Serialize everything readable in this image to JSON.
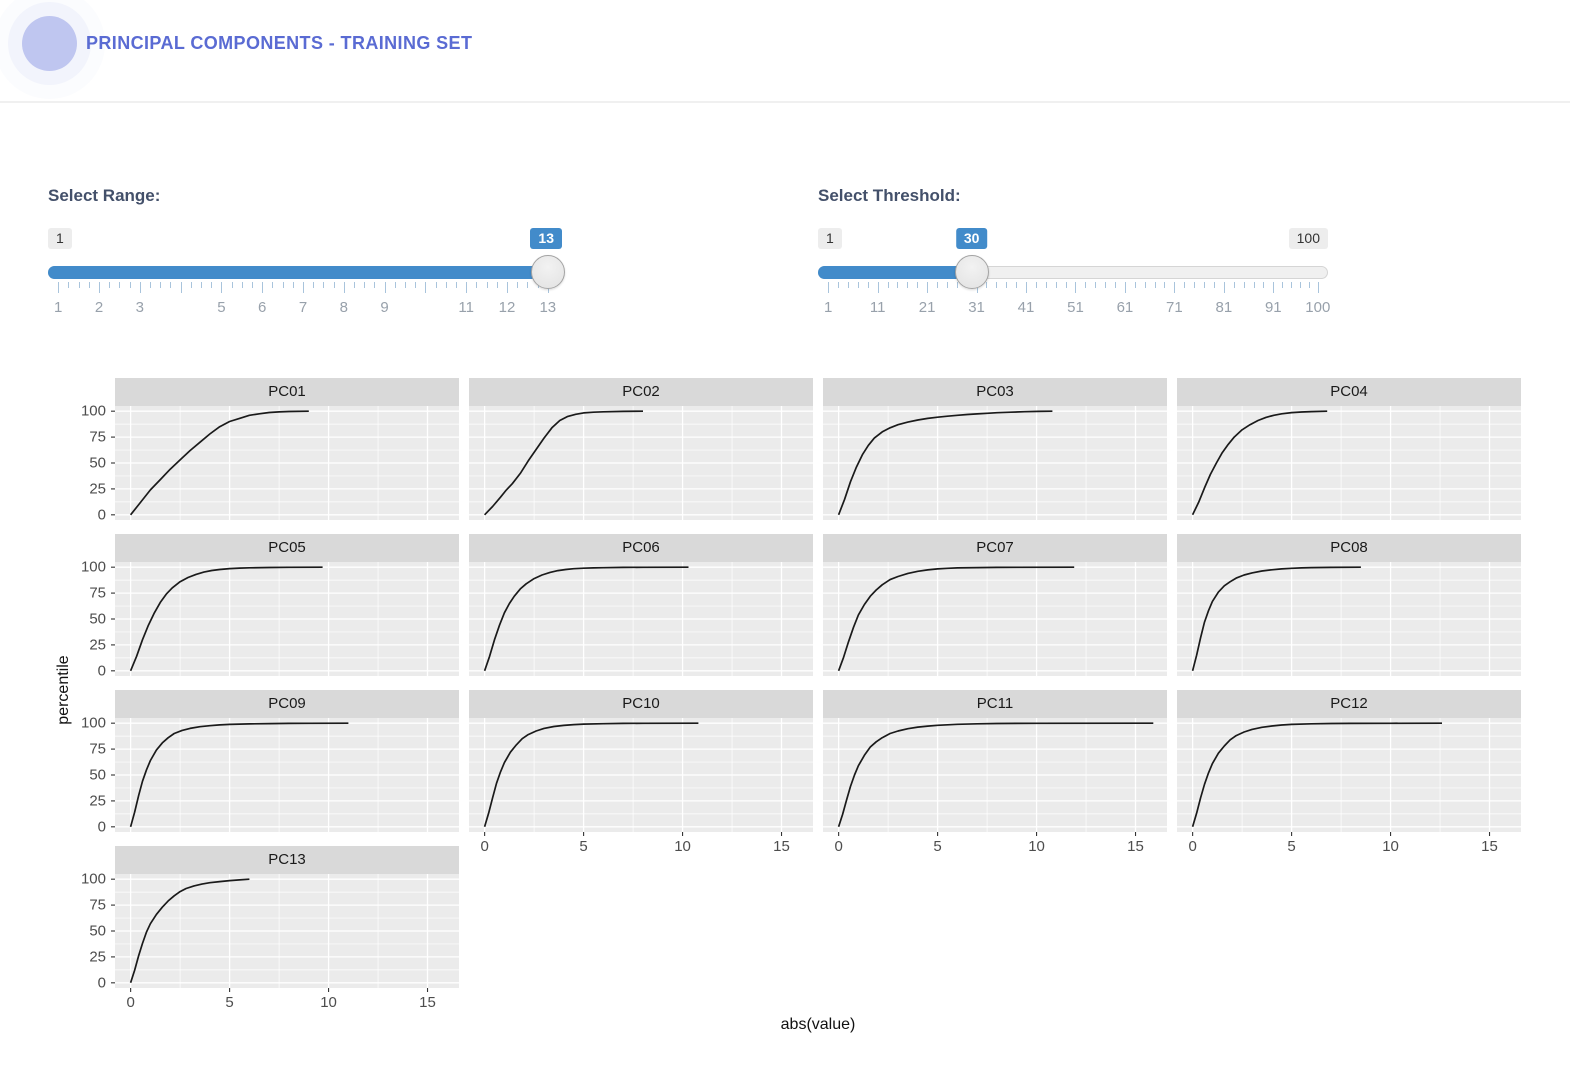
{
  "header": {
    "title": "PRINCIPAL COMPONENTS - TRAINING SET"
  },
  "accent_colors": {
    "slider_blue": "#428bca",
    "brand_purple": "#5a6bd3"
  },
  "range_slider": {
    "label": "Select Range:",
    "min": 1,
    "max": 13,
    "value": 13,
    "badges": {
      "min": "1",
      "value": "13"
    },
    "tick_values": [
      1,
      2,
      3,
      4,
      5,
      6,
      7,
      8,
      9,
      10,
      11,
      12,
      13
    ],
    "tick_labels": [
      "1",
      "2",
      "3",
      null,
      "5",
      "6",
      "7",
      "8",
      "9",
      null,
      "11",
      "12",
      "13"
    ],
    "minor_per_gap": 3
  },
  "threshold_slider": {
    "label": "Select Threshold:",
    "min": 1,
    "max": 100,
    "value": 30,
    "badges": {
      "min": "1",
      "max": "100",
      "value": "30"
    },
    "tick_values": [
      1,
      11,
      21,
      31,
      41,
      51,
      61,
      71,
      81,
      91,
      100
    ],
    "tick_labels": [
      "1",
      "11",
      "21",
      "31",
      "41",
      "51",
      "61",
      "71",
      "81",
      "91",
      "100"
    ],
    "minor_per_gap": 4
  },
  "chart_data": {
    "type": "line",
    "title": "",
    "xlabel": "abs(value)",
    "ylabel": "percentile",
    "ncol": 4,
    "xlim": [
      -0.79,
      16.59
    ],
    "ylim": [
      -5,
      105
    ],
    "x_ticks": [
      0,
      5,
      10,
      15
    ],
    "y_ticks": [
      0,
      25,
      50,
      75,
      100
    ],
    "x_minor": [
      2.5,
      7.5,
      12.5
    ],
    "y_minor": [
      12.5,
      37.5,
      62.5,
      87.5
    ],
    "grid": "on",
    "panel_bg": "#ebebeb",
    "strip_bg": "#d9d9d9",
    "line_color": "#1a1a1a",
    "facets": [
      {
        "title": "PC01",
        "points": [
          [
            0,
            0
          ],
          [
            0.5,
            12
          ],
          [
            1,
            24
          ],
          [
            1.5,
            34
          ],
          [
            2,
            44
          ],
          [
            2.5,
            53
          ],
          [
            3,
            62
          ],
          [
            3.5,
            70
          ],
          [
            4,
            78
          ],
          [
            4.5,
            85
          ],
          [
            5,
            90
          ],
          [
            5.5,
            93
          ],
          [
            6,
            96
          ],
          [
            6.5,
            97.5
          ],
          [
            7,
            98.7
          ],
          [
            7.5,
            99.3
          ],
          [
            8,
            99.7
          ],
          [
            9,
            100
          ]
        ]
      },
      {
        "title": "PC02",
        "points": [
          [
            0,
            0
          ],
          [
            0.4,
            8
          ],
          [
            0.8,
            17
          ],
          [
            1.1,
            24
          ],
          [
            1.4,
            30
          ],
          [
            1.8,
            40
          ],
          [
            2.2,
            52
          ],
          [
            2.6,
            63
          ],
          [
            3,
            74
          ],
          [
            3.4,
            84
          ],
          [
            3.8,
            91
          ],
          [
            4.2,
            95
          ],
          [
            4.6,
            97
          ],
          [
            5,
            98.3
          ],
          [
            5.5,
            99
          ],
          [
            6,
            99.4
          ],
          [
            7,
            99.8
          ],
          [
            8,
            100
          ]
        ]
      },
      {
        "title": "PC03",
        "points": [
          [
            0,
            0
          ],
          [
            0.3,
            15
          ],
          [
            0.6,
            32
          ],
          [
            0.9,
            46
          ],
          [
            1.2,
            58
          ],
          [
            1.5,
            67
          ],
          [
            1.8,
            74
          ],
          [
            2.2,
            80
          ],
          [
            2.6,
            84
          ],
          [
            3,
            87
          ],
          [
            3.5,
            89.5
          ],
          [
            4,
            91.5
          ],
          [
            4.5,
            93
          ],
          [
            5,
            94.2
          ],
          [
            5.5,
            95.2
          ],
          [
            6,
            96
          ],
          [
            6.5,
            96.8
          ],
          [
            7,
            97.4
          ],
          [
            7.5,
            98
          ],
          [
            8,
            98.5
          ],
          [
            8.7,
            99
          ],
          [
            9.4,
            99.5
          ],
          [
            10.1,
            99.8
          ],
          [
            10.8,
            100
          ]
        ]
      },
      {
        "title": "PC04",
        "points": [
          [
            0,
            0
          ],
          [
            0.3,
            12
          ],
          [
            0.6,
            26
          ],
          [
            0.9,
            39
          ],
          [
            1.2,
            50
          ],
          [
            1.5,
            60
          ],
          [
            1.8,
            68
          ],
          [
            2.1,
            75
          ],
          [
            2.5,
            82
          ],
          [
            2.9,
            87
          ],
          [
            3.3,
            91
          ],
          [
            3.7,
            94
          ],
          [
            4.1,
            96
          ],
          [
            4.5,
            97.5
          ],
          [
            5,
            98.6
          ],
          [
            5.5,
            99.2
          ],
          [
            6,
            99.6
          ],
          [
            6.8,
            100
          ]
        ]
      },
      {
        "title": "PC05",
        "points": [
          [
            0,
            0
          ],
          [
            0.3,
            14
          ],
          [
            0.6,
            30
          ],
          [
            0.9,
            44
          ],
          [
            1.2,
            56
          ],
          [
            1.5,
            66
          ],
          [
            1.8,
            74
          ],
          [
            2.1,
            80
          ],
          [
            2.5,
            86
          ],
          [
            2.9,
            90
          ],
          [
            3.3,
            93
          ],
          [
            3.7,
            95.3
          ],
          [
            4.1,
            96.8
          ],
          [
            4.5,
            97.8
          ],
          [
            5,
            98.6
          ],
          [
            5.5,
            99.1
          ],
          [
            6,
            99.4
          ],
          [
            7,
            99.7
          ],
          [
            8,
            99.9
          ],
          [
            9.7,
            100
          ]
        ]
      },
      {
        "title": "PC06",
        "points": [
          [
            0,
            0
          ],
          [
            0.25,
            14
          ],
          [
            0.5,
            30
          ],
          [
            0.75,
            44
          ],
          [
            1,
            56
          ],
          [
            1.25,
            65
          ],
          [
            1.5,
            72
          ],
          [
            1.8,
            79
          ],
          [
            2.1,
            84
          ],
          [
            2.5,
            89
          ],
          [
            2.9,
            92.5
          ],
          [
            3.3,
            95
          ],
          [
            3.7,
            96.7
          ],
          [
            4.1,
            97.8
          ],
          [
            4.5,
            98.5
          ],
          [
            5,
            99
          ],
          [
            5.5,
            99.3
          ],
          [
            6,
            99.5
          ],
          [
            7,
            99.8
          ],
          [
            8,
            99.9
          ],
          [
            10.3,
            100
          ]
        ]
      },
      {
        "title": "PC07",
        "points": [
          [
            0,
            0
          ],
          [
            0.25,
            13
          ],
          [
            0.5,
            28
          ],
          [
            0.75,
            42
          ],
          [
            1,
            54
          ],
          [
            1.3,
            64
          ],
          [
            1.6,
            72
          ],
          [
            1.9,
            78
          ],
          [
            2.2,
            83
          ],
          [
            2.6,
            88
          ],
          [
            3,
            91
          ],
          [
            3.5,
            94
          ],
          [
            4,
            96
          ],
          [
            4.5,
            97.4
          ],
          [
            5,
            98.3
          ],
          [
            5.5,
            98.9
          ],
          [
            6,
            99.3
          ],
          [
            7,
            99.6
          ],
          [
            8,
            99.8
          ],
          [
            9,
            99.9
          ],
          [
            11.9,
            100
          ]
        ]
      },
      {
        "title": "PC08",
        "points": [
          [
            0,
            0
          ],
          [
            0.2,
            15
          ],
          [
            0.4,
            32
          ],
          [
            0.6,
            47
          ],
          [
            0.8,
            58
          ],
          [
            1,
            67
          ],
          [
            1.3,
            76
          ],
          [
            1.6,
            82
          ],
          [
            1.9,
            86
          ],
          [
            2.2,
            89.5
          ],
          [
            2.6,
            92.5
          ],
          [
            3,
            94.5
          ],
          [
            3.5,
            96.3
          ],
          [
            4,
            97.5
          ],
          [
            4.5,
            98.3
          ],
          [
            5,
            98.9
          ],
          [
            5.5,
            99.3
          ],
          [
            6,
            99.6
          ],
          [
            7,
            99.8
          ],
          [
            8.5,
            100
          ]
        ]
      },
      {
        "title": "PC09",
        "points": [
          [
            0,
            0
          ],
          [
            0.2,
            14
          ],
          [
            0.4,
            30
          ],
          [
            0.6,
            44
          ],
          [
            0.8,
            55
          ],
          [
            1,
            64
          ],
          [
            1.3,
            74
          ],
          [
            1.6,
            81
          ],
          [
            1.9,
            86
          ],
          [
            2.2,
            90
          ],
          [
            2.6,
            93
          ],
          [
            3,
            95
          ],
          [
            3.5,
            96.6
          ],
          [
            4,
            97.6
          ],
          [
            4.5,
            98.3
          ],
          [
            5,
            98.8
          ],
          [
            6,
            99.3
          ],
          [
            7,
            99.6
          ],
          [
            8,
            99.8
          ],
          [
            9,
            99.9
          ],
          [
            11,
            100
          ]
        ]
      },
      {
        "title": "PC10",
        "points": [
          [
            0,
            0
          ],
          [
            0.2,
            13
          ],
          [
            0.4,
            28
          ],
          [
            0.6,
            42
          ],
          [
            0.8,
            53
          ],
          [
            1,
            62
          ],
          [
            1.3,
            72
          ],
          [
            1.6,
            79
          ],
          [
            1.9,
            85
          ],
          [
            2.2,
            89
          ],
          [
            2.6,
            92.5
          ],
          [
            3,
            95
          ],
          [
            3.5,
            96.8
          ],
          [
            4,
            97.9
          ],
          [
            4.5,
            98.6
          ],
          [
            5,
            99.1
          ],
          [
            6,
            99.5
          ],
          [
            7,
            99.8
          ],
          [
            8,
            99.9
          ],
          [
            10.8,
            100
          ]
        ]
      },
      {
        "title": "PC11",
        "points": [
          [
            0,
            0
          ],
          [
            0.2,
            12
          ],
          [
            0.4,
            26
          ],
          [
            0.6,
            39
          ],
          [
            0.8,
            50
          ],
          [
            1,
            59
          ],
          [
            1.3,
            69
          ],
          [
            1.6,
            77
          ],
          [
            1.9,
            82
          ],
          [
            2.2,
            86
          ],
          [
            2.6,
            90
          ],
          [
            3,
            92.5
          ],
          [
            3.5,
            94.7
          ],
          [
            4,
            96.2
          ],
          [
            4.5,
            97.2
          ],
          [
            5,
            98
          ],
          [
            6,
            98.9
          ],
          [
            7,
            99.4
          ],
          [
            8,
            99.7
          ],
          [
            10,
            99.9
          ],
          [
            15.9,
            100
          ]
        ]
      },
      {
        "title": "PC12",
        "points": [
          [
            0,
            0
          ],
          [
            0.2,
            13
          ],
          [
            0.4,
            28
          ],
          [
            0.6,
            41
          ],
          [
            0.8,
            52
          ],
          [
            1,
            61
          ],
          [
            1.3,
            71
          ],
          [
            1.6,
            78
          ],
          [
            1.9,
            84
          ],
          [
            2.2,
            88
          ],
          [
            2.6,
            91.5
          ],
          [
            3,
            94
          ],
          [
            3.5,
            96
          ],
          [
            4,
            97.3
          ],
          [
            4.5,
            98.2
          ],
          [
            5,
            98.8
          ],
          [
            6,
            99.4
          ],
          [
            7,
            99.7
          ],
          [
            8,
            99.8
          ],
          [
            10,
            99.9
          ],
          [
            12.6,
            100
          ]
        ]
      },
      {
        "title": "PC13",
        "points": [
          [
            0,
            0
          ],
          [
            0.2,
            12
          ],
          [
            0.4,
            26
          ],
          [
            0.6,
            38
          ],
          [
            0.8,
            49
          ],
          [
            1,
            57
          ],
          [
            1.3,
            66
          ],
          [
            1.6,
            73
          ],
          [
            1.9,
            79
          ],
          [
            2.2,
            84
          ],
          [
            2.5,
            88
          ],
          [
            2.8,
            91
          ],
          [
            3.2,
            93.5
          ],
          [
            3.6,
            95.3
          ],
          [
            4,
            96.6
          ],
          [
            4.5,
            97.7
          ],
          [
            5,
            98.6
          ],
          [
            5.5,
            99.3
          ],
          [
            6,
            100
          ]
        ]
      }
    ]
  }
}
